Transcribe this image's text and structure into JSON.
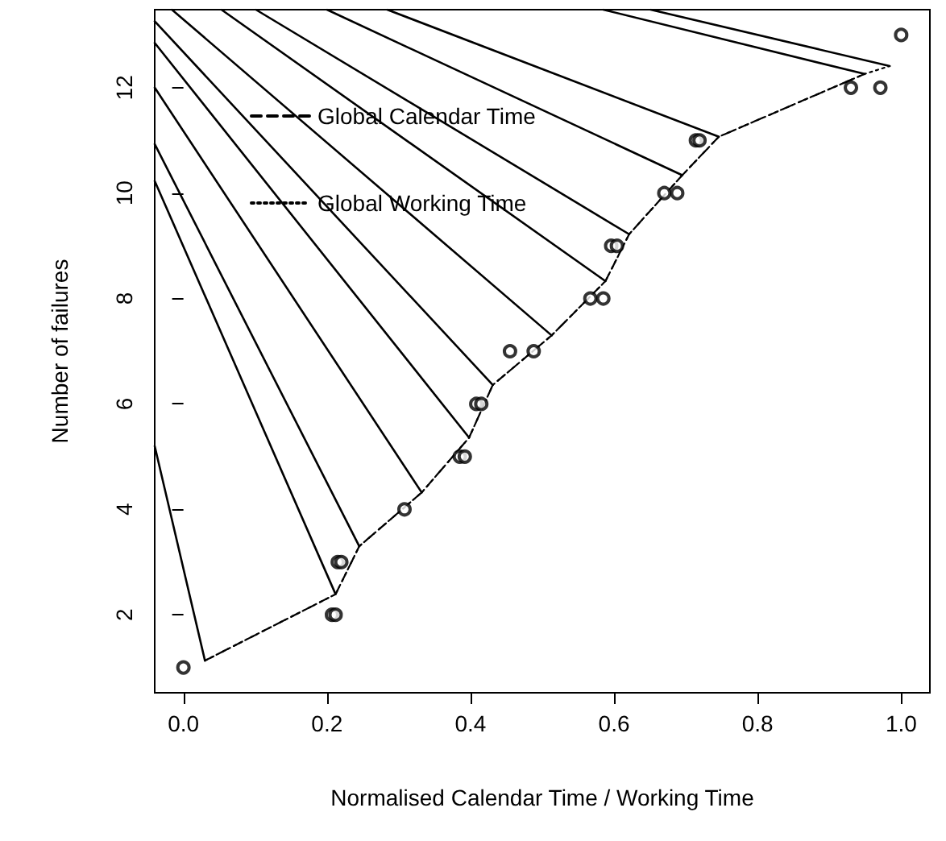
{
  "chart_data": {
    "type": "line",
    "xlabel": "Normalised Calendar Time / Working Time",
    "ylabel": "Number of failures",
    "xlim": [
      -0.04,
      1.04
    ],
    "ylim": [
      0.52,
      13.48
    ],
    "xticks": [
      {
        "value": 0,
        "label": "0.0"
      },
      {
        "value": 0.2,
        "label": "0.2"
      },
      {
        "value": 0.4,
        "label": "0.4"
      },
      {
        "value": 0.6,
        "label": "0.6"
      },
      {
        "value": 0.8,
        "label": "0.8"
      },
      {
        "value": 1,
        "label": "1.0"
      }
    ],
    "yticks": [
      2,
      4,
      6,
      8,
      10,
      12
    ],
    "grid": false,
    "legend": "top left",
    "series": [
      {
        "type": "scatter",
        "marker": "circle",
        "color": "#000000",
        "x": [
          0,
          0.207,
          0.212,
          0.215,
          0.22,
          0.308,
          0.385,
          0.392,
          0.408,
          0.415,
          0.455,
          0.488,
          0.567,
          0.585,
          0.596,
          0.604,
          0.67,
          0.688,
          0.714,
          0.719,
          0.93,
          0.971,
          1.0
        ],
        "values": [
          1,
          2,
          2,
          3,
          3,
          4,
          5,
          5,
          6,
          6,
          7,
          7,
          8,
          8,
          9,
          9,
          10,
          10,
          11,
          11,
          12,
          12,
          13
        ]
      },
      {
        "name": "Global Calendar Time",
        "color": "#000000",
        "line_style": "dashed",
        "x": [
          0.03,
          0.212,
          0.245,
          0.332,
          0.398,
          0.431,
          0.513,
          0.588,
          0.621,
          0.695,
          0.746,
          0.949
        ],
        "values": [
          1.13,
          2.39,
          3.3,
          4.32,
          5.36,
          6.36,
          7.3,
          8.33,
          9.22,
          10.34,
          11.07,
          12.26
        ]
      },
      {
        "name": "Global Working Time",
        "color": "#000000",
        "line_style": "dotted",
        "x": [
          0.03,
          0.212,
          0.245,
          0.332,
          0.398,
          0.431,
          0.513,
          0.588,
          0.621,
          0.695,
          0.746,
          0.949,
          0.984
        ],
        "values": [
          1.13,
          2.39,
          3.3,
          4.32,
          5.36,
          6.36,
          7.3,
          8.33,
          9.22,
          10.34,
          11.07,
          12.26,
          12.41
        ]
      },
      {
        "color": "#000000",
        "line_style": "solid",
        "x": [
          0.03,
          -0.04
        ],
        "values": [
          1.13,
          5.2
        ]
      },
      {
        "color": "#000000",
        "line_style": "solid",
        "x": [
          0.212,
          -0.04
        ],
        "values": [
          2.39,
          10.23
        ]
      },
      {
        "color": "#000000",
        "line_style": "solid",
        "x": [
          0.245,
          -0.04
        ],
        "values": [
          3.3,
          10.93
        ]
      },
      {
        "color": "#000000",
        "line_style": "solid",
        "x": [
          0.332,
          -0.04
        ],
        "values": [
          4.32,
          12.0
        ]
      },
      {
        "color": "#000000",
        "line_style": "solid",
        "x": [
          0.398,
          -0.04
        ],
        "values": [
          5.36,
          12.85
        ]
      },
      {
        "color": "#000000",
        "line_style": "solid",
        "x": [
          0.431,
          -0.04
        ],
        "values": [
          6.36,
          13.26
        ]
      },
      {
        "color": "#000000",
        "line_style": "solid",
        "x": [
          0.513,
          -0.016
        ],
        "values": [
          7.3,
          13.48
        ]
      },
      {
        "color": "#000000",
        "line_style": "solid",
        "x": [
          0.588,
          0.053
        ],
        "values": [
          8.33,
          13.48
        ]
      },
      {
        "color": "#000000",
        "line_style": "solid",
        "x": [
          0.621,
          0.101
        ],
        "values": [
          9.22,
          13.48
        ]
      },
      {
        "color": "#000000",
        "line_style": "solid",
        "x": [
          0.695,
          0.2
        ],
        "values": [
          10.34,
          13.48
        ]
      },
      {
        "color": "#000000",
        "line_style": "solid",
        "x": [
          0.746,
          0.284
        ],
        "values": [
          11.07,
          13.48
        ]
      },
      {
        "color": "#000000",
        "line_style": "solid",
        "x": [
          0.949,
          0.585
        ],
        "values": [
          12.26,
          13.48
        ]
      },
      {
        "color": "#000000",
        "line_style": "solid",
        "x": [
          0.984,
          0.651
        ],
        "values": [
          12.41,
          13.48
        ]
      }
    ]
  }
}
